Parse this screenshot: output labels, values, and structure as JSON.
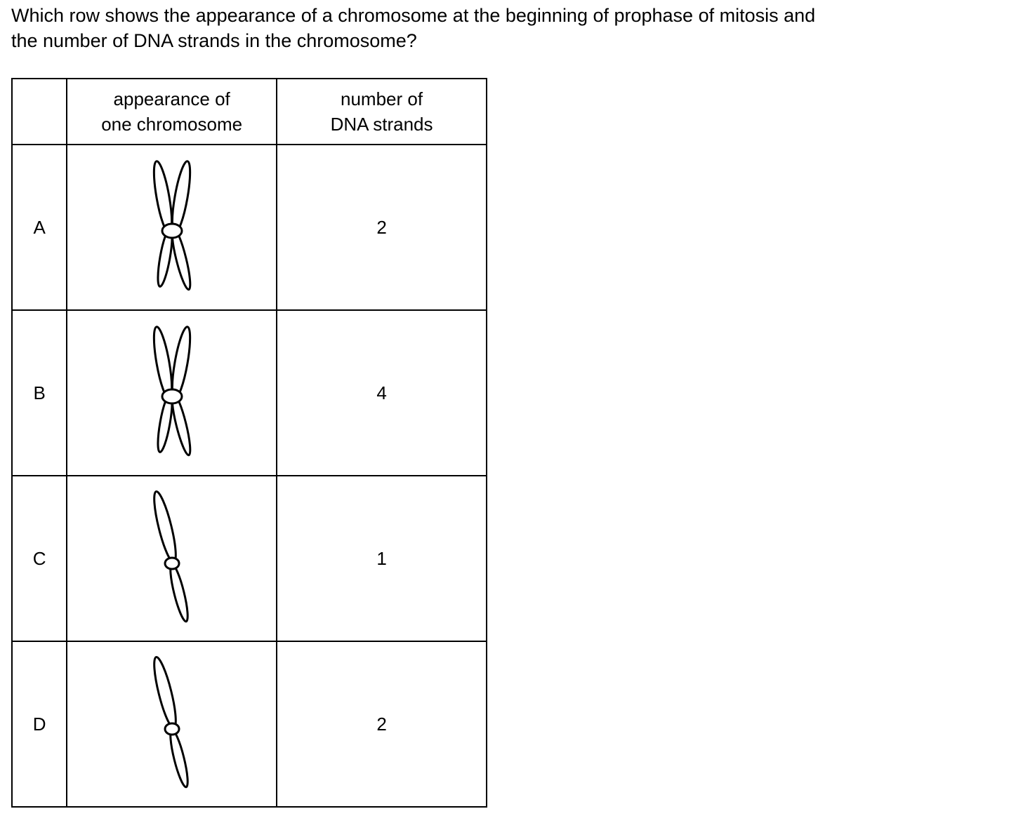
{
  "question": {
    "line1": "Which row shows the appearance of a chromosome at the beginning of prophase of mitosis and",
    "line2": "the number of DNA strands in the chromosome?"
  },
  "table": {
    "headers": {
      "appearance_line1": "appearance of",
      "appearance_line2": "one chromosome",
      "number_line1": "number of",
      "number_line2": "DNA strands"
    },
    "rows": [
      {
        "letter": "A",
        "chromosome": "two-chromatid-chromosome-icon",
        "dna_strands": "2"
      },
      {
        "letter": "B",
        "chromosome": "two-chromatid-chromosome-icon",
        "dna_strands": "4"
      },
      {
        "letter": "C",
        "chromosome": "single-chromatid-chromosome-icon",
        "dna_strands": "1"
      },
      {
        "letter": "D",
        "chromosome": "single-chromatid-chromosome-icon",
        "dna_strands": "2"
      }
    ]
  }
}
